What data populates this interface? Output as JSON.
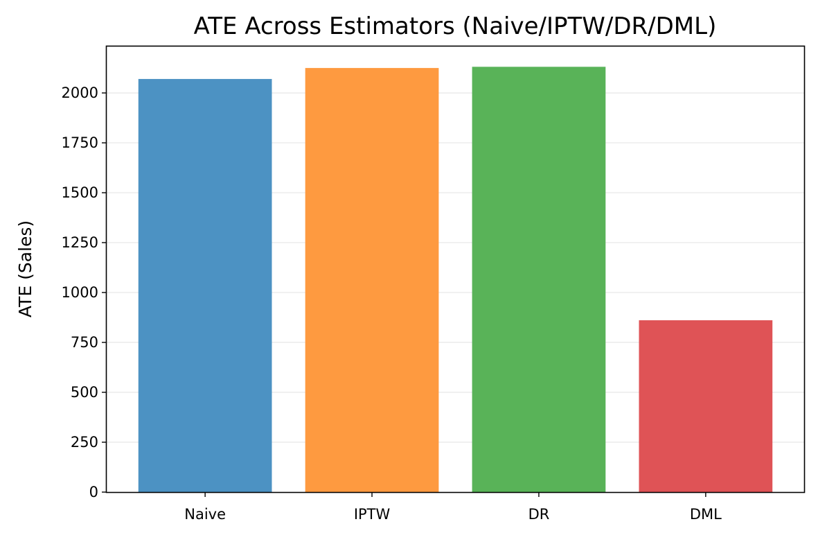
{
  "chart_data": {
    "type": "bar",
    "title": "ATE Across Estimators (Naive/IPTW/DR/DML)",
    "xlabel": "",
    "ylabel": "ATE (Sales)",
    "categories": [
      "Naive",
      "IPTW",
      "DR",
      "DML"
    ],
    "values": [
      2070,
      2125,
      2131,
      861
    ],
    "colors": [
      "#4c92c3",
      "#fe9a40",
      "#59b358",
      "#df5356"
    ],
    "ylim": [
      0,
      2233
    ],
    "yticks": [
      0,
      250,
      500,
      750,
      1000,
      1250,
      1500,
      1750,
      2000
    ],
    "ytick_labels": [
      "0",
      "250",
      "500",
      "750",
      "1000",
      "1250",
      "1500",
      "1750",
      "2000"
    ],
    "grid": {
      "axis": "y",
      "color": "#e6e6e6"
    },
    "legend": "none"
  }
}
